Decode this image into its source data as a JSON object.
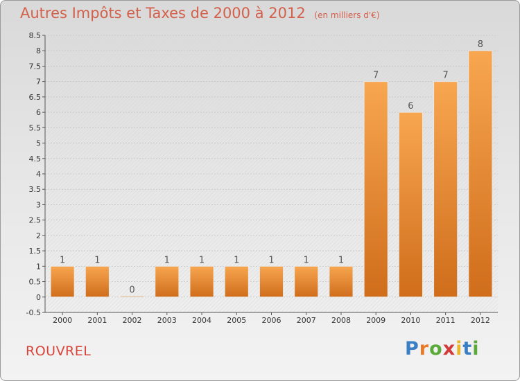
{
  "header": {
    "title": "Autres Impôts et Taxes de 2000 à 2012",
    "unit": "(en milliers d'€)"
  },
  "footer": {
    "place": "ROUVREL",
    "brand_letters": [
      "P",
      "r",
      "o",
      "x",
      "i",
      "t",
      "i"
    ]
  },
  "colors": {
    "title": "#d2604a",
    "place": "#d9443a",
    "bar_light": "#f8a650",
    "bar_dark": "#cf6d1b",
    "brand": [
      "#3a7fc4",
      "#e87b2a",
      "#5aaa3a",
      "#d23a3a",
      "#e8b62a",
      "#3a7fc4",
      "#5aaa3a"
    ]
  },
  "chart_data": {
    "type": "bar",
    "categories": [
      "2000",
      "2001",
      "2002",
      "2003",
      "2004",
      "2005",
      "2006",
      "2007",
      "2008",
      "2009",
      "2010",
      "2011",
      "2012"
    ],
    "values": [
      1,
      1,
      0,
      1,
      1,
      1,
      1,
      1,
      1,
      7,
      6,
      7,
      8
    ],
    "data_labels": [
      "1",
      "1",
      "0",
      "1",
      "1",
      "1",
      "1",
      "1",
      "1",
      "7",
      "6",
      "7",
      "8"
    ],
    "ylim": [
      -0.5,
      8.5
    ],
    "yticks": [
      "-0.5",
      "0",
      "0.5",
      "1",
      "1.5",
      "2",
      "2.5",
      "3",
      "3.5",
      "4",
      "4.5",
      "5",
      "5.5",
      "6",
      "6.5",
      "7",
      "7.5",
      "8",
      "8.5"
    ],
    "grid": true,
    "legend": "none"
  }
}
